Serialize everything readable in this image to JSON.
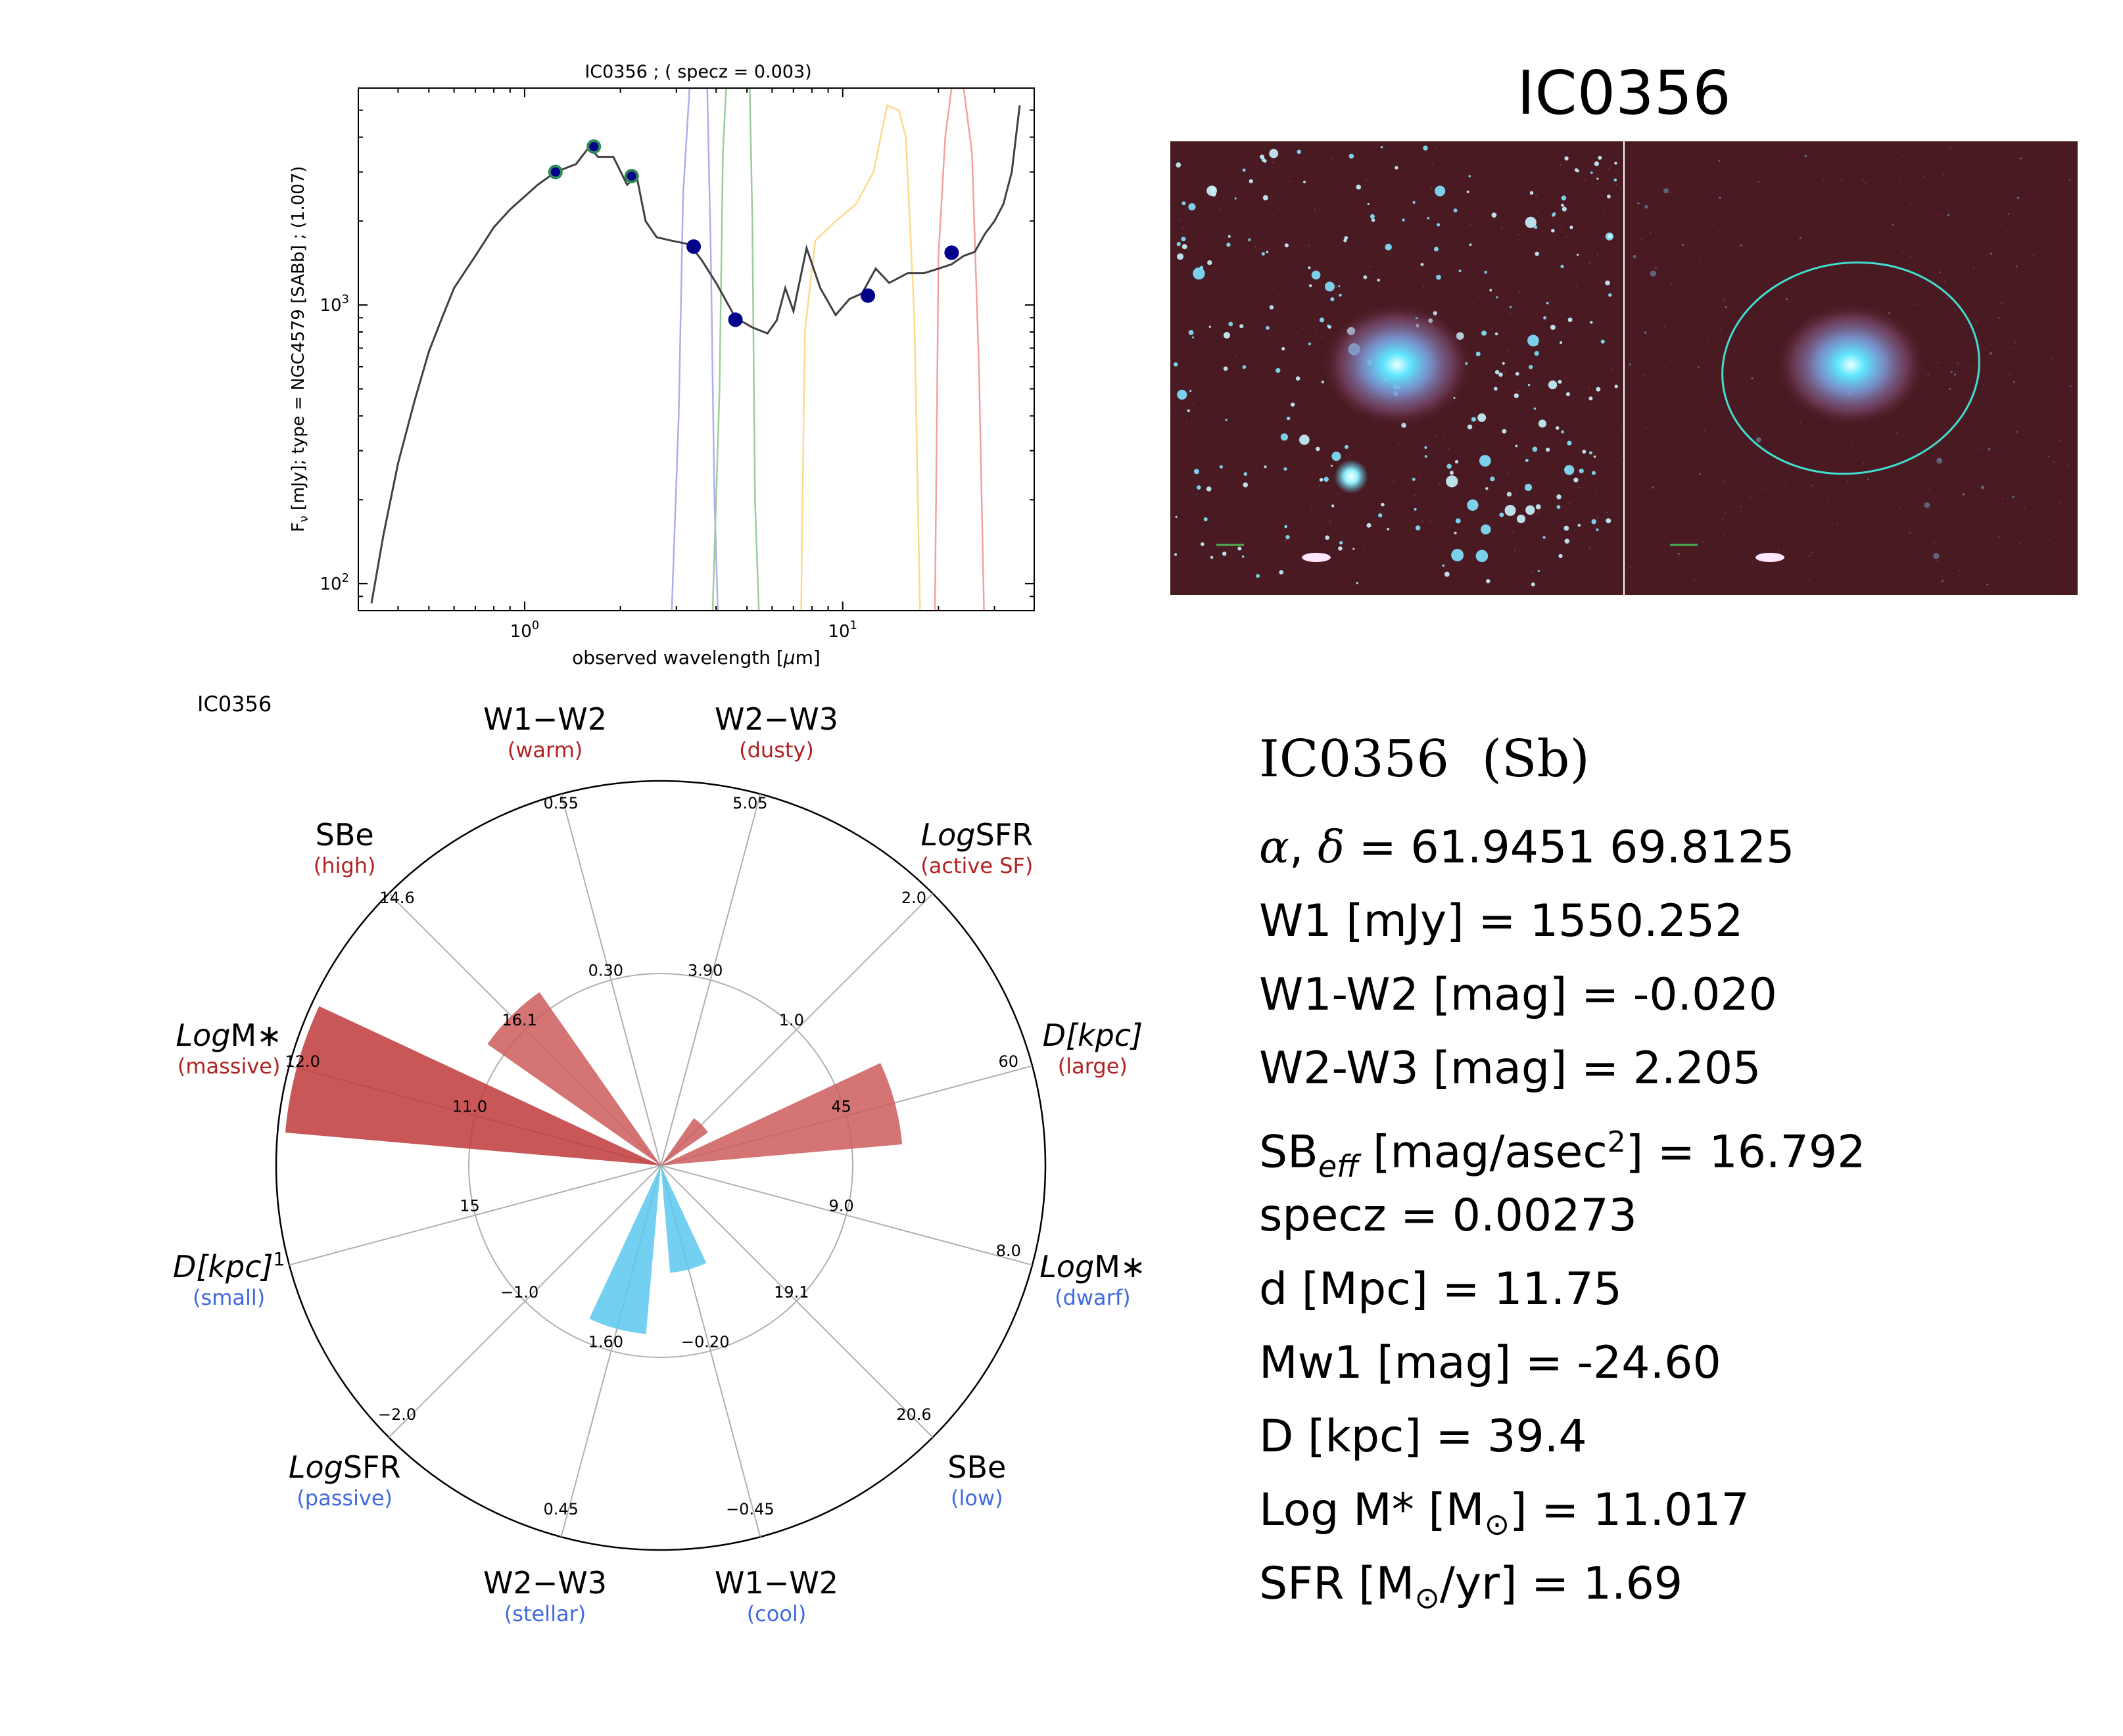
{
  "galaxy_name": "IC0356",
  "sed_title": "IC0356 ; ( specz = 0.003)",
  "image_title": "IC0356",
  "radar_label": "IC0356",
  "info": {
    "title": "IC0356  (Sb)",
    "radec": " = 61.9451 69.8125",
    "w1": "W1 [mJy] = 1550.252",
    "w1w2": "W1-W2 [mag] = -0.020",
    "w2w3": "W2-W3 [mag] = 2.205",
    "sbeff_prefix": "SB",
    "sbeff_sub": "eff",
    "sbeff_mid": " [mag/asec",
    "sbeff_sup": "2",
    "sbeff_suffix": "] = 16.792",
    "specz": "specz = 0.00273",
    "dist": "d [Mpc] = 11.75",
    "mw1": "Mw1 [mag] = -24.60",
    "diam": "D [kpc] = 39.4",
    "logm": "Log M* [M",
    "logm_val": "] = 11.017",
    "sfr": "SFR [M",
    "sfr_val": "/yr] = 1.69"
  },
  "chart_data": [
    {
      "type": "line",
      "title": "IC0356 ; ( specz = 0.003)",
      "xlabel": "observed wavelength [μm]",
      "ylabel": "F_ν [mJy];  type = NGC4579 [SABb] ; (1.007)",
      "xscale": "log",
      "yscale": "log",
      "xlim": [
        0.3,
        40
      ],
      "ylim": [
        80,
        6000
      ],
      "xticks": [
        {
          "value": 1,
          "label": "10^0"
        },
        {
          "value": 10,
          "label": "10^1"
        }
      ],
      "yticks": [
        {
          "value": 100,
          "label": "10^2"
        },
        {
          "value": 1000,
          "label": "10^3"
        }
      ],
      "series": [
        {
          "kind": "template",
          "color": "#404040",
          "points": [
            [
              0.33,
              85
            ],
            [
              0.36,
              150
            ],
            [
              0.4,
              270
            ],
            [
              0.45,
              450
            ],
            [
              0.5,
              680
            ],
            [
              0.55,
              900
            ],
            [
              0.6,
              1150
            ],
            [
              0.7,
              1500
            ],
            [
              0.8,
              1900
            ],
            [
              0.9,
              2200
            ],
            [
              1.0,
              2450
            ],
            [
              1.1,
              2700
            ],
            [
              1.2,
              2900
            ],
            [
              1.3,
              3050
            ],
            [
              1.45,
              3200
            ],
            [
              1.6,
              3700
            ],
            [
              1.7,
              3400
            ],
            [
              1.9,
              3400
            ],
            [
              2.1,
              2700
            ],
            [
              2.25,
              2900
            ],
            [
              2.4,
              2000
            ],
            [
              2.6,
              1750
            ],
            [
              2.9,
              1700
            ],
            [
              3.3,
              1650
            ],
            [
              3.6,
              1450
            ],
            [
              4.0,
              1200
            ],
            [
              4.6,
              900
            ],
            [
              5.2,
              830
            ],
            [
              5.8,
              790
            ],
            [
              6.2,
              880
            ],
            [
              6.6,
              1150
            ],
            [
              7.0,
              950
            ],
            [
              7.7,
              1600
            ],
            [
              8.5,
              1150
            ],
            [
              9.5,
              920
            ],
            [
              10.5,
              1050
            ],
            [
              11.5,
              1100
            ],
            [
              12.7,
              1350
            ],
            [
              14.0,
              1200
            ],
            [
              16.0,
              1300
            ],
            [
              18.0,
              1300
            ],
            [
              20.0,
              1350
            ],
            [
              22.0,
              1400
            ],
            [
              24.0,
              1500
            ],
            [
              26.0,
              1550
            ],
            [
              28.0,
              1800
            ],
            [
              30.0,
              2000
            ],
            [
              32.0,
              2300
            ],
            [
              34.0,
              3000
            ],
            [
              36.0,
              5200
            ]
          ]
        },
        {
          "kind": "photometry",
          "color": "#00008b",
          "edge": "#2e8b57",
          "points": [
            [
              1.25,
              3000
            ],
            [
              1.65,
              3700
            ],
            [
              2.17,
              2900
            ]
          ]
        },
        {
          "kind": "photometry",
          "color": "#00008b",
          "edge": "#00008b",
          "points": [
            [
              3.4,
              1620
            ],
            [
              4.6,
              885
            ],
            [
              12,
              1080
            ],
            [
              22,
              1540
            ]
          ]
        },
        {
          "kind": "filter",
          "color": "#aab0ee",
          "points": [
            [
              2.9,
              80
            ],
            [
              3.05,
              400
            ],
            [
              3.15,
              2500
            ],
            [
              3.3,
              6000
            ],
            [
              3.75,
              6000
            ],
            [
              3.85,
              1500
            ],
            [
              3.95,
              200
            ],
            [
              4.05,
              80
            ]
          ]
        },
        {
          "kind": "filter",
          "color": "#9bcc9b",
          "points": [
            [
              3.9,
              80
            ],
            [
              4.1,
              500
            ],
            [
              4.2,
              3500
            ],
            [
              4.3,
              6000
            ],
            [
              5.1,
              6000
            ],
            [
              5.2,
              2000
            ],
            [
              5.3,
              200
            ],
            [
              5.45,
              80
            ]
          ]
        },
        {
          "kind": "filter",
          "color": "#ffd98a",
          "points": [
            [
              7.4,
              80
            ],
            [
              7.6,
              800
            ],
            [
              8.2,
              1700
            ],
            [
              9.5,
              2000
            ],
            [
              11,
              2300
            ],
            [
              12.5,
              3000
            ],
            [
              13.8,
              5200
            ],
            [
              15,
              5000
            ],
            [
              15.8,
              4000
            ],
            [
              16.8,
              900
            ],
            [
              17.5,
              80
            ]
          ]
        },
        {
          "kind": "filter",
          "color": "#f4a0a0",
          "points": [
            [
              19.5,
              80
            ],
            [
              20,
              1500
            ],
            [
              21,
              4000
            ],
            [
              22,
              6000
            ],
            [
              24,
              6000
            ],
            [
              25.5,
              3500
            ],
            [
              26.8,
              600
            ],
            [
              27.8,
              80
            ]
          ]
        }
      ]
    },
    {
      "type": "radar",
      "title": "IC0356",
      "axes": [
        {
          "label": "W1−W2",
          "sublabel": "(warm)",
          "side": "high",
          "ticks": [
            "0.55",
            "0.30"
          ]
        },
        {
          "label": "W2−W3",
          "sublabel": "(dusty)",
          "side": "high",
          "ticks": [
            "5.05",
            "3.90"
          ]
        },
        {
          "label": "SFR",
          "label_italic": "Log",
          "sublabel": "(active SF)",
          "side": "high",
          "ticks": [
            "2.0",
            "1.0"
          ]
        },
        {
          "label": "[kpc]",
          "label_italic": "D",
          "sublabel": "(large)",
          "side": "high",
          "ticks": [
            "60",
            "45"
          ]
        },
        {
          "label": "M∗",
          "label_italic": "Log",
          "sublabel": "(dwarf)",
          "side": "low",
          "ticks": [
            "8.0",
            "9.0"
          ]
        },
        {
          "label": "SBe",
          "sublabel": "(low)",
          "side": "low",
          "ticks": [
            "20.6",
            "19.1"
          ]
        },
        {
          "label": "W1−W2",
          "sublabel": "(cool)",
          "side": "low",
          "ticks": [
            "−0.45",
            "−0.20"
          ]
        },
        {
          "label": "W2−W3",
          "sublabel": "(stellar)",
          "side": "low",
          "ticks": [
            "0.45",
            "1.60"
          ]
        },
        {
          "label": "SFR",
          "label_italic": "Log",
          "sublabel": "(passive)",
          "side": "low",
          "ticks": [
            "−2.0",
            "−1.0"
          ]
        },
        {
          "label": "[kpc]",
          "label_italic": "D",
          "label_sup": "1",
          "sublabel": "(small)",
          "side": "low",
          "ticks": [
            "",
            "15"
          ]
        },
        {
          "label": "M∗",
          "label_italic": "Log",
          "sublabel": "(massive)",
          "side": "high",
          "ticks": [
            "12.0",
            "11.0"
          ]
        },
        {
          "label": "SBe",
          "label_italic_last": "e",
          "sublabel": "(high)",
          "side": "high",
          "ticks": [
            "14.6",
            "16.1"
          ]
        }
      ],
      "bars": [
        {
          "axis": 2,
          "value": 0.15,
          "color": "#cd5c5c"
        },
        {
          "axis": 3,
          "value": 0.63,
          "color": "#cd5c5c"
        },
        {
          "axis": 6,
          "value": 0.28,
          "color": "#5bc8ee"
        },
        {
          "axis": 7,
          "value": 0.44,
          "color": "#5bc8ee"
        },
        {
          "axis": 10,
          "value": 0.98,
          "color": "#c0393b"
        },
        {
          "axis": 11,
          "value": 0.55,
          "color": "#cd5c5c"
        }
      ],
      "high_color": "#b22222",
      "low_color": "#4169e1"
    }
  ],
  "images": {
    "panels": [
      "optical-composite",
      "with-aperture-ellipse"
    ],
    "background": "#4a1a22",
    "aperture_color": "#40e0d0"
  }
}
